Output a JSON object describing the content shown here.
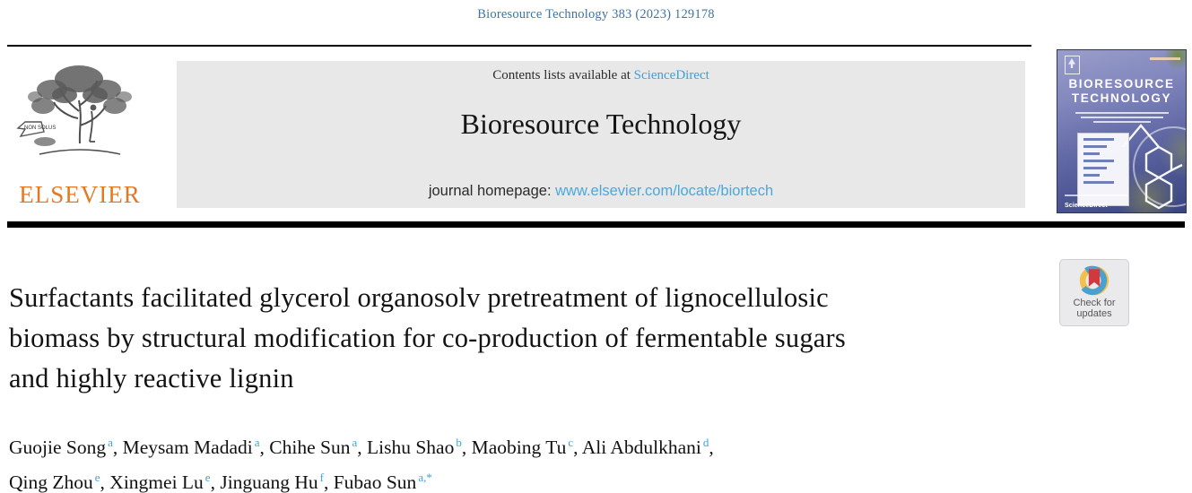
{
  "header": {
    "citation": "Bioresource Technology 383 (2023) 129178"
  },
  "publisher": {
    "name": "ELSEVIER",
    "banner_text": "NON SOLUS"
  },
  "journal_banner": {
    "contents_prefix": "Contents lists available at ",
    "sciencedirect_link": "ScienceDirect",
    "journal_title": "Bioresource Technology",
    "homepage_prefix": "journal homepage: ",
    "homepage_url": "www.elsevier.com/locate/biortech"
  },
  "cover": {
    "title_line1": "BIORESOURCE",
    "title_line2": "TECHNOLOGY",
    "sciencedirect_label": "ScienceDirect"
  },
  "badge": {
    "line1": "Check for",
    "line2": "updates"
  },
  "article": {
    "title_lines": [
      "Surfactants facilitated glycerol organosolv pretreatment of lignocellulosic",
      "biomass by structural modification for co-production of fermentable sugars",
      "and highly reactive lignin"
    ],
    "authors": [
      {
        "name": "Guojie Song",
        "sup": "a"
      },
      {
        "name": "Meysam Madadi",
        "sup": "a"
      },
      {
        "name": "Chihe Sun",
        "sup": "a"
      },
      {
        "name": "Lishu Shao",
        "sup": "b"
      },
      {
        "name": "Maobing Tu",
        "sup": "c"
      },
      {
        "name": "Ali Abdulkhani",
        "sup": "d",
        "break_after": true
      },
      {
        "name": "Qing Zhou",
        "sup": "e"
      },
      {
        "name": "Xingmei Lu",
        "sup": "e"
      },
      {
        "name": "Jinguang Hu",
        "sup": "f"
      },
      {
        "name": "Fubao Sun",
        "sup": "a,*"
      }
    ]
  },
  "colors": {
    "citation_link": "#3d74a6",
    "sciencedirect_blue": "#3ba0db",
    "homepage_link_blue": "#4aa8dc",
    "elsevier_orange": "#e87722",
    "banner_bg": "#e8e8e8",
    "superscript_blue": "#3da3dc",
    "badge_ring_blue": "#4aa1d0",
    "badge_ring_yellow": "#f0c24b",
    "badge_bookmark_red": "#d03a3f"
  }
}
